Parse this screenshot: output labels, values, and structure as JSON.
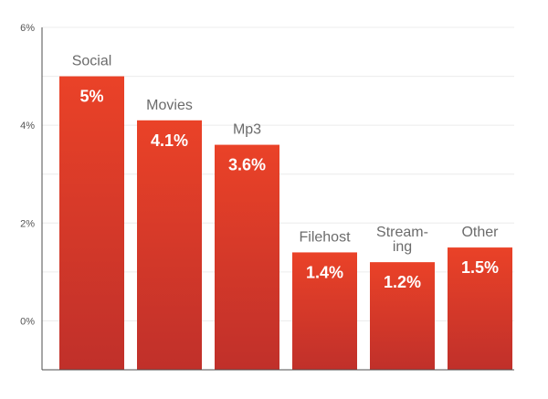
{
  "chart_data": {
    "type": "bar",
    "title": "",
    "xlabel": "",
    "ylabel": "",
    "categories": [
      "Social",
      "Movies",
      "Mp3",
      "Filehost",
      "Streaming",
      "Other"
    ],
    "category_labels": [
      [
        "Social"
      ],
      [
        "Movies"
      ],
      [
        "Mp3"
      ],
      [
        "Filehost"
      ],
      [
        "Stream-",
        "ing"
      ],
      [
        "Other"
      ]
    ],
    "values": [
      5,
      4.1,
      3.6,
      1.4,
      1.2,
      1.5
    ],
    "value_labels": [
      "5%",
      "4.1%",
      "3.6%",
      "1.4%",
      "1.2%",
      "1.5%"
    ],
    "y_ticks": [
      {
        "value": 6,
        "label": "6%"
      },
      {
        "value": 4,
        "label": "4%"
      },
      {
        "value": 2,
        "label": "2%"
      },
      {
        "value": 0,
        "label": "0%"
      }
    ],
    "ylim": [
      -1,
      6
    ],
    "grid": true,
    "colors": {
      "bar_top": "#ea4228",
      "bar_bottom": "#c0302a",
      "grid": "#ececec",
      "axis": "#4d4d4d"
    }
  }
}
